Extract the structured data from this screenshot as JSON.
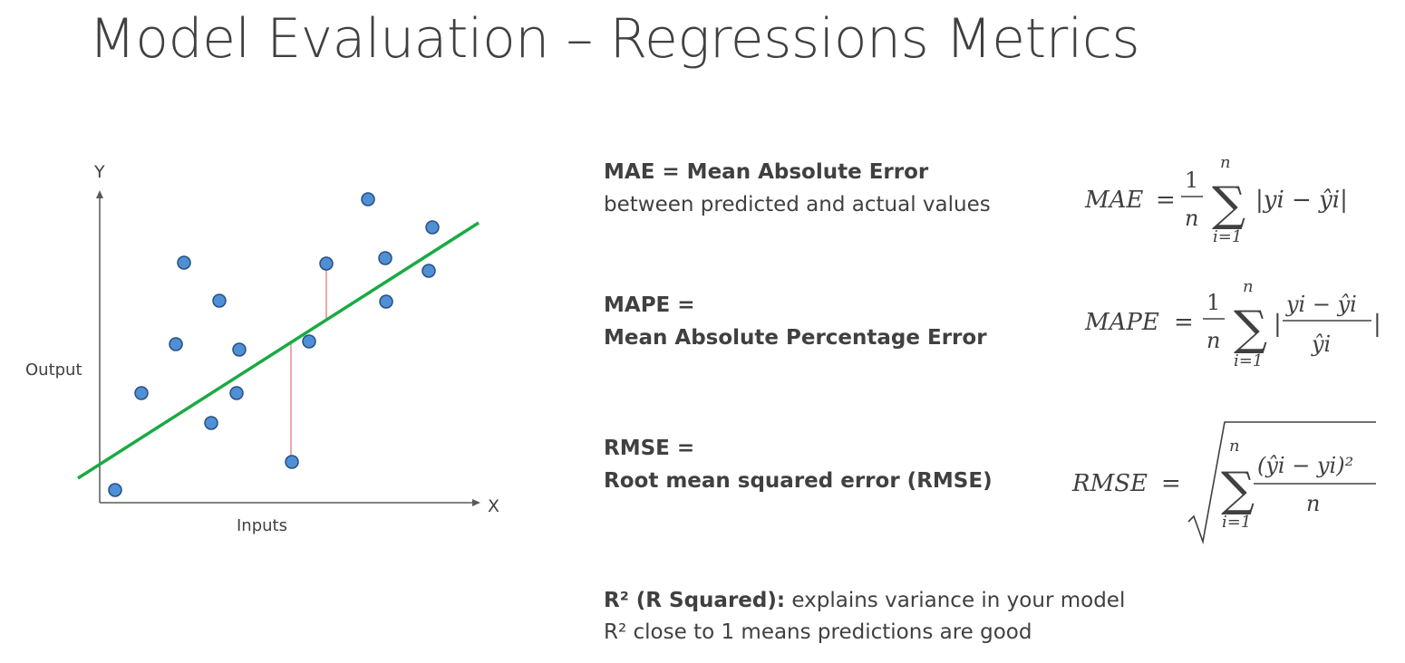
{
  "slide": {
    "title": "Model Evaluation – Regressions Metrics"
  },
  "plot": {
    "y_axis_letter": "Y",
    "x_axis_letter": "X",
    "y_label": "Output",
    "x_label": "Inputs",
    "colors": {
      "axis": "#595959",
      "regression_line": "#1aaa44",
      "point_fill": "#4f8fd6",
      "point_stroke": "#27507f",
      "residual": "#e07070"
    }
  },
  "metrics": {
    "mae": {
      "heading": "MAE = Mean Absolute Error",
      "description": "between predicted and actual values",
      "formula_lhs": "MAE",
      "frac_num": "1",
      "frac_den": "n",
      "sum_upper": "n",
      "sum_lower": "i=1",
      "summand": "|yi − ŷi|"
    },
    "mape": {
      "heading_line1": "MAPE =",
      "heading_line2": "Mean Absolute Percentage Error",
      "formula_lhs": "MAPE",
      "frac_num": "1",
      "frac_den": "n",
      "sum_upper": "n",
      "sum_lower": "i=1",
      "inner_num": "yi − ŷi",
      "inner_den": "ŷi"
    },
    "rmse": {
      "heading_line1": "RMSE =",
      "heading_line2": "Root mean squared error (RMSE)",
      "formula_lhs": "RMSE",
      "sum_upper": "n",
      "sum_lower": "i=1",
      "inner_num": "(ŷi − yi)²",
      "inner_den": "n"
    },
    "r2": {
      "term": "R² (R Squared):",
      "explanation": " explains variance in your model",
      "line2": "R² close to 1 means predictions are good"
    }
  }
}
